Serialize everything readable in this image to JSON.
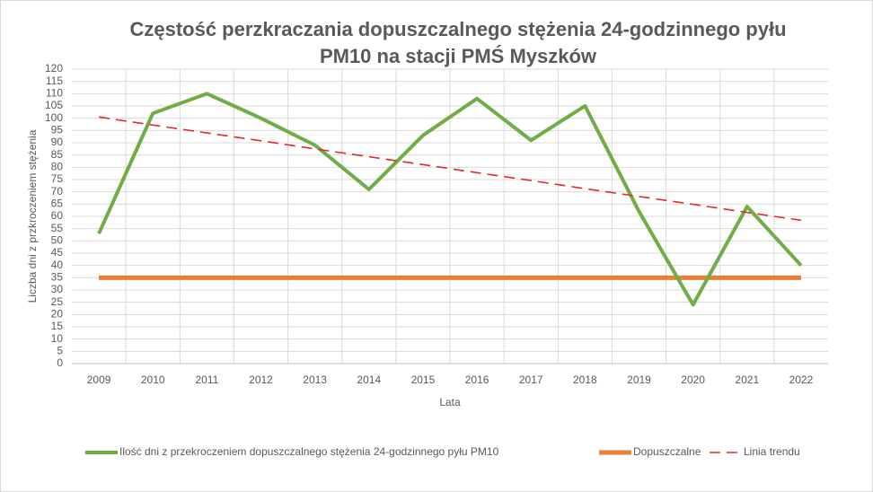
{
  "chart_data": {
    "type": "line",
    "title": [
      "Częstość perzkraczania dopuszczalnego stężenia 24-godzinnego pyłu",
      "PM10 na stacji PMŚ Myszków"
    ],
    "x_label": "Lata",
    "y_label": "Liczba dni z przkroczeniem stężenia",
    "categories": [
      "2009",
      "2010",
      "2011",
      "2012",
      "2013",
      "2014",
      "2015",
      "2016",
      "2017",
      "2018",
      "2019",
      "2020",
      "2021",
      "2022"
    ],
    "series": [
      {
        "name": "Ilość dni z przekroczeniem dopuszczalnego stężenia 24-godzinnego pyłu PM10",
        "color": "#70ad47",
        "style": "solid",
        "width": 4,
        "values": [
          53,
          102,
          110,
          100,
          89,
          71,
          93,
          108,
          91,
          105,
          62,
          24,
          64,
          40
        ]
      },
      {
        "name": "Dopuszczalne",
        "color": "#ed7d31",
        "style": "solid",
        "width": 5,
        "values": [
          35,
          35,
          35,
          35,
          35,
          35,
          35,
          35,
          35,
          35,
          35,
          35,
          35,
          35
        ]
      },
      {
        "name": "Linia trendu",
        "color": "#e8262a",
        "style": "dashed",
        "width": 1.6,
        "values": [
          100.5,
          97.2,
          94.0,
          90.8,
          87.5,
          84.3,
          81.1,
          77.8,
          74.6,
          71.3,
          68.1,
          64.9,
          61.6,
          58.4
        ]
      }
    ],
    "ylim": [
      0,
      120
    ],
    "yticks": [
      0,
      5,
      10,
      15,
      20,
      25,
      30,
      35,
      40,
      45,
      50,
      55,
      60,
      65,
      70,
      75,
      80,
      85,
      90,
      95,
      100,
      105,
      110,
      115,
      120
    ],
    "grid": true,
    "legend": "bottom"
  }
}
